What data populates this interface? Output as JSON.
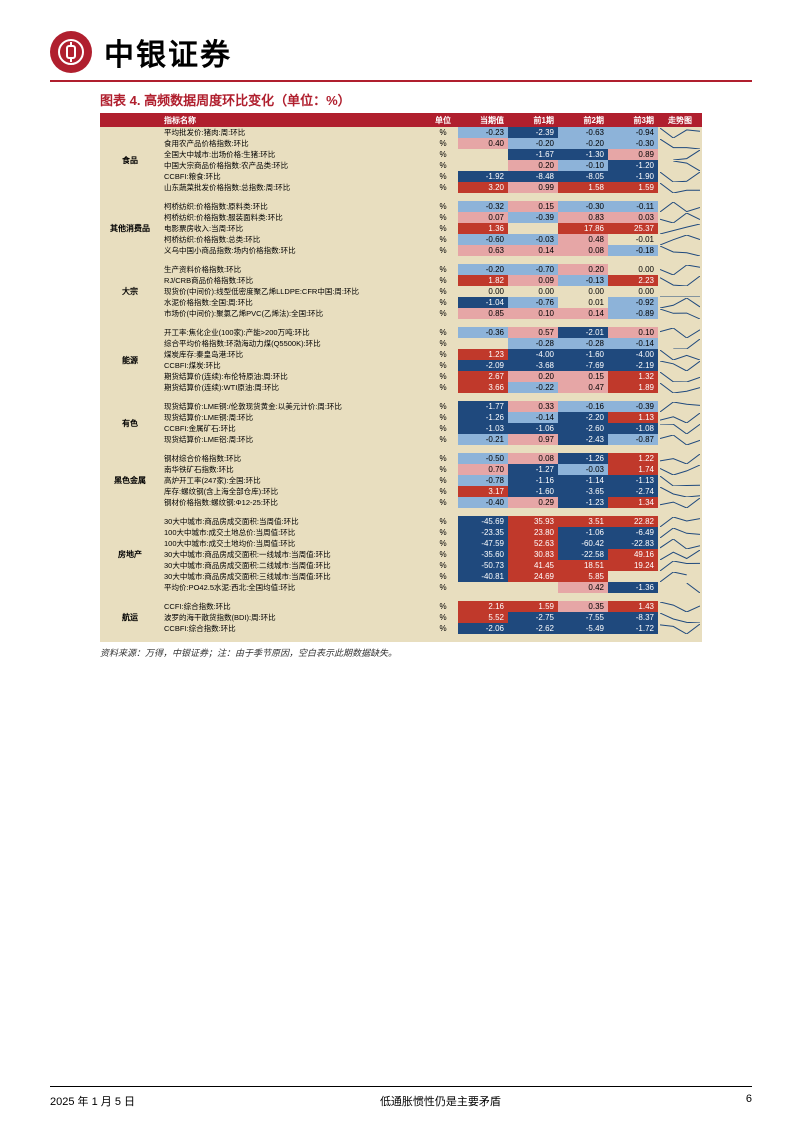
{
  "brand": "中银证券",
  "chart_title": "图表 4. 高频数据周度环比变化（单位：%）",
  "columns": [
    "指标名称",
    "单位",
    "当期值",
    "前1期",
    "前2期",
    "前3期",
    "走势图"
  ],
  "colors": {
    "deep_fall": "#1f497d",
    "fall": "#8db3d9",
    "flat": "#e8debf",
    "rise": "#e6a6a6",
    "deep_rise": "#c0392b",
    "header_bg": "#b01f2e",
    "table_bg": "#e8debf",
    "sparkline": "#1f497d"
  },
  "thresholds": {
    "deep": 1.0,
    "mild": 0.01
  },
  "source_note": "资料来源：万得，中银证券；注：由于季节原因，空白表示此期数据缺失。",
  "footer": {
    "date": "2025 年 1 月 5 日",
    "title": "低通胀惯性仍是主要矛盾",
    "page": "6"
  },
  "groups": [
    {
      "name": "食品",
      "rows": [
        {
          "n": "平均批发价:猪肉:周:环比",
          "u": "%",
          "v": [
            -0.23,
            -2.39,
            -0.63,
            -0.94
          ]
        },
        {
          "n": "食用农产品价格指数:环比",
          "u": "%",
          "v": [
            0.4,
            -0.2,
            -0.2,
            -0.3
          ]
        },
        {
          "n": "全国大中城市:出场价格:生猪:环比",
          "u": "%",
          "v": [
            null,
            -1.67,
            -1.3,
            0.89
          ]
        },
        {
          "n": "中国大宗商品价格指数:农产品类:环比",
          "u": "%",
          "v": [
            null,
            0.2,
            -0.1,
            -1.2
          ]
        },
        {
          "n": "CCBFI:粮食:环比",
          "u": "%",
          "v": [
            -1.92,
            -8.48,
            -8.05,
            -1.9
          ]
        },
        {
          "n": "山东蔬菜批发价格指数:总指数:周:环比",
          "u": "%",
          "v": [
            3.2,
            0.99,
            1.58,
            1.59
          ]
        }
      ]
    },
    {
      "name": "其他消费品",
      "rows": [
        {
          "n": "柯桥纺织:价格指数:原料类:环比",
          "u": "%",
          "v": [
            -0.32,
            0.15,
            -0.3,
            -0.11
          ]
        },
        {
          "n": "柯桥纺织:价格指数:服装面料类:环比",
          "u": "%",
          "v": [
            0.07,
            -0.39,
            0.83,
            0.03
          ]
        },
        {
          "n": "电影票房收入:当周:环比",
          "u": "%",
          "v": [
            1.36,
            null,
            17.86,
            25.37
          ]
        },
        {
          "n": "柯桥纺织:价格指数:总类:环比",
          "u": "%",
          "v": [
            -0.6,
            -0.03,
            0.48,
            -0.01
          ]
        },
        {
          "n": "义乌中国小商品指数:场内价格指数:环比",
          "u": "%",
          "v": [
            0.63,
            0.14,
            0.08,
            -0.18
          ]
        }
      ]
    },
    {
      "name": "大宗",
      "rows": [
        {
          "n": "生产资料价格指数:环比",
          "u": "%",
          "v": [
            -0.2,
            -0.7,
            0.2,
            0.0
          ]
        },
        {
          "n": "RJ/CRB商品价格指数:环比",
          "u": "%",
          "v": [
            1.82,
            0.09,
            -0.13,
            2.23
          ]
        },
        {
          "n": "现货价(中间价):线型低密度聚乙烯LLDPE:CFR中国:周:环比",
          "u": "%",
          "v": [
            0.0,
            0.0,
            0.0,
            0.0
          ]
        },
        {
          "n": "水泥价格指数:全国:周:环比",
          "u": "%",
          "v": [
            -1.04,
            -0.76,
            0.01,
            -0.92
          ]
        },
        {
          "n": "市场价(中间价):聚氯乙烯PVC(乙烯法):全国:环比",
          "u": "%",
          "v": [
            0.85,
            0.1,
            0.14,
            -0.89
          ]
        }
      ]
    },
    {
      "name": "能源",
      "rows": [
        {
          "n": "开工率:焦化企业(100家):产能>200万吨:环比",
          "u": "%",
          "v": [
            -0.36,
            0.57,
            -2.01,
            0.1
          ]
        },
        {
          "n": "综合平均价格指数:环渤海动力煤(Q5500K):环比",
          "u": "%",
          "v": [
            null,
            -0.28,
            -0.28,
            -0.14
          ]
        },
        {
          "n": "煤炭库存:秦皇岛港:环比",
          "u": "%",
          "v": [
            1.23,
            -4.0,
            -1.6,
            -4.0
          ]
        },
        {
          "n": "CCBFI:煤炭:环比",
          "u": "%",
          "v": [
            -2.09,
            -3.68,
            -7.69,
            -2.19
          ]
        },
        {
          "n": "期货结算价(连续):布伦特原油:周:环比",
          "u": "%",
          "v": [
            2.67,
            0.2,
            0.15,
            1.32
          ]
        },
        {
          "n": "期货结算价(连续):WTI原油:周:环比",
          "u": "%",
          "v": [
            3.66,
            -0.22,
            0.47,
            1.89
          ]
        }
      ]
    },
    {
      "name": "有色",
      "rows": [
        {
          "n": "现货结算价:LME铜:/伦敦现货黄金:以美元计价:周:环比",
          "u": "%",
          "v": [
            -1.77,
            0.33,
            -0.16,
            -0.39
          ]
        },
        {
          "n": "现货结算价:LME铜:周:环比",
          "u": "%",
          "v": [
            -1.26,
            -0.14,
            -2.2,
            1.13
          ]
        },
        {
          "n": "CCBFI:金属矿石:环比",
          "u": "%",
          "v": [
            -1.03,
            -1.06,
            -2.6,
            -1.08
          ]
        },
        {
          "n": "现货结算价:LME铝:周:环比",
          "u": "%",
          "v": [
            -0.21,
            0.97,
            -2.43,
            -0.87
          ]
        }
      ]
    },
    {
      "name": "黑色金属",
      "rows": [
        {
          "n": "钢材综合价格指数:环比",
          "u": "%",
          "v": [
            -0.5,
            0.08,
            -1.26,
            1.22
          ]
        },
        {
          "n": "南华铁矿石指数:环比",
          "u": "%",
          "v": [
            0.7,
            -1.27,
            -0.03,
            1.74
          ]
        },
        {
          "n": "高炉开工率(247家):全国:环比",
          "u": "%",
          "v": [
            -0.78,
            -1.16,
            -1.14,
            -1.13
          ]
        },
        {
          "n": "库存:螺纹钢(含上海全部仓库):环比",
          "u": "%",
          "v": [
            3.17,
            -1.6,
            -3.65,
            -2.74
          ]
        },
        {
          "n": "钢材价格指数:螺纹钢:Φ12-25:环比",
          "u": "%",
          "v": [
            -0.4,
            0.29,
            -1.23,
            1.34
          ]
        }
      ]
    },
    {
      "name": "房地产",
      "rows": [
        {
          "n": "30大中城市:商品房成交面积:当周值:环比",
          "u": "%",
          "v": [
            -45.69,
            35.93,
            3.51,
            22.82
          ]
        },
        {
          "n": "100大中城市:成交土地总价:当周值:环比",
          "u": "%",
          "v": [
            -23.35,
            23.8,
            -1.06,
            -6.49
          ]
        },
        {
          "n": "100大中城市:成交土地均价:当周值:环比",
          "u": "%",
          "v": [
            -47.59,
            52.63,
            -60.42,
            -22.83
          ]
        },
        {
          "n": "30大中城市:商品房成交面积:一线城市:当周值:环比",
          "u": "%",
          "v": [
            -35.6,
            30.83,
            -22.58,
            49.16
          ]
        },
        {
          "n": "30大中城市:商品房成交面积:二线城市:当周值:环比",
          "u": "%",
          "v": [
            -50.73,
            41.45,
            18.51,
            19.24
          ]
        },
        {
          "n": "30大中城市:商品房成交面积:三线城市:当周值:环比",
          "u": "%",
          "v": [
            -40.81,
            24.69,
            5.85,
            null
          ]
        },
        {
          "n": "平均价:PO42.5水泥:西北:全国均值:环比",
          "u": "%",
          "v": [
            null,
            null,
            0.42,
            -1.36
          ]
        }
      ]
    },
    {
      "name": "航运",
      "rows": [
        {
          "n": "CCFI:综合指数:环比",
          "u": "%",
          "v": [
            2.16,
            1.59,
            0.35,
            1.43
          ]
        },
        {
          "n": "波罗的海干散货指数(BDI):周:环比",
          "u": "%",
          "v": [
            5.52,
            -2.75,
            -7.55,
            -8.37
          ]
        },
        {
          "n": "CCBFI:综合指数:环比",
          "u": "%",
          "v": [
            -2.06,
            -2.62,
            -5.49,
            -1.72
          ]
        }
      ]
    }
  ]
}
